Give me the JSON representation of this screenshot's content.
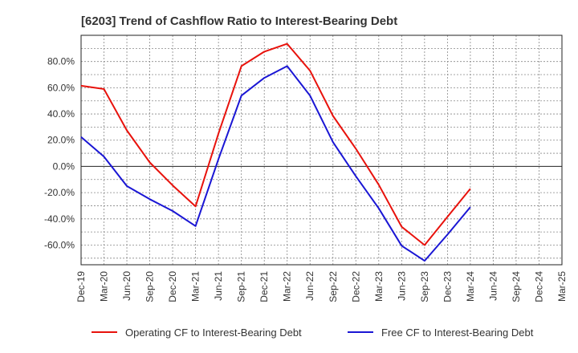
{
  "chart_data": {
    "type": "line",
    "title": "[6203]  Trend of Cashflow Ratio to Interest-Bearing Debt",
    "xlabel": "",
    "ylabel": "",
    "ylim": [
      -75,
      100
    ],
    "yticks": [
      80,
      60,
      40,
      20,
      0,
      -20,
      -40,
      -60
    ],
    "ytick_labels": [
      "80.0%",
      "60.0%",
      "40.0%",
      "20.0%",
      "0.0%",
      "-20.0%",
      "-40.0%",
      "-60.0%"
    ],
    "x": [
      "Dec-19",
      "Mar-20",
      "Jun-20",
      "Sep-20",
      "Dec-20",
      "Mar-21",
      "Jun-21",
      "Sep-21",
      "Dec-21",
      "Mar-22",
      "Jun-22",
      "Sep-22",
      "Dec-22",
      "Mar-23",
      "Jun-23",
      "Sep-23",
      "Dec-23",
      "Mar-24",
      "Jun-24",
      "Sep-24",
      "Dec-24",
      "Mar-25"
    ],
    "grid": true,
    "legend_position": "bottom",
    "series": [
      {
        "name": "Operating CF to Interest-Bearing Debt",
        "color": "#e8120c",
        "values": [
          61.5,
          59,
          27.5,
          3,
          -14.5,
          -30.5,
          25,
          76.5,
          87.5,
          93.5,
          73,
          38.5,
          13.5,
          -14,
          -46,
          -60,
          -38.5,
          -17,
          null,
          null,
          null,
          null
        ]
      },
      {
        "name": "Free CF to Interest-Bearing Debt",
        "color": "#1a16d4",
        "values": [
          22.5,
          7.5,
          -15,
          -25,
          -34,
          -45.5,
          5.5,
          54,
          67.5,
          76.5,
          54,
          18.5,
          -7.5,
          -32,
          -60.5,
          -72,
          -52,
          -31,
          null,
          null,
          null,
          null
        ]
      }
    ]
  }
}
